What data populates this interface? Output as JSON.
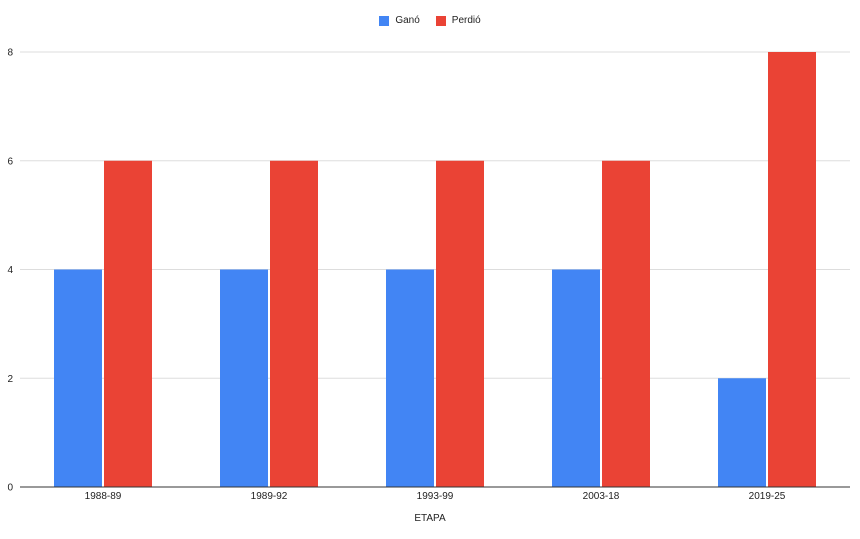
{
  "chart_data": {
    "type": "bar",
    "categories": [
      "1988-89",
      "1989-92",
      "1993-99",
      "2003-18",
      "2019-25"
    ],
    "series": [
      {
        "name": "Ganó",
        "color": "#4285f4",
        "values": [
          4,
          4,
          4,
          4,
          2
        ]
      },
      {
        "name": "Perdió",
        "color": "#ea4335",
        "values": [
          6,
          6,
          6,
          6,
          8
        ]
      }
    ],
    "xlabel": "ETAPA",
    "ylabel": "",
    "ylim": [
      0,
      8
    ],
    "yticks": [
      0,
      2,
      4,
      6,
      8
    ],
    "grid": true,
    "legend_position": "top-center"
  }
}
